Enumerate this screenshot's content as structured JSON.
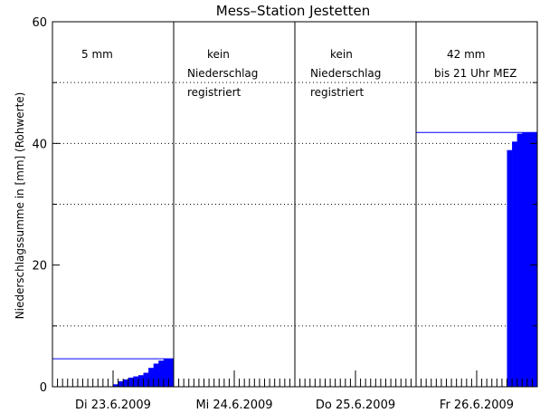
{
  "chart_data": {
    "type": "bar",
    "title": "Mess–Station Jestetten",
    "ylabel": "Niederschlagssumme in [mm] (Rohwerte)",
    "xlabel": "",
    "ylim": [
      0,
      60
    ],
    "yticks": [
      "0",
      "20",
      "40",
      "60"
    ],
    "y_minor_step": 10,
    "grid": "dotted horizontal at 10, 30, 40, 50",
    "days": [
      {
        "label": "Di 23.6.2009",
        "note": [
          "5 mm"
        ],
        "total": 4.6
      },
      {
        "label": "Mi 24.6.2009",
        "note": [
          "kein",
          "Niederschlag",
          "registriert"
        ],
        "total": 0
      },
      {
        "label": "Do 25.6.2009",
        "note": [
          "kein",
          "Niederschlag",
          "registriert"
        ],
        "total": 0
      },
      {
        "label": "Fr 26.6.2009",
        "note": [
          "42 mm",
          "bis 21 Uhr MEZ"
        ],
        "total": 41.8
      }
    ],
    "series": [
      {
        "color": "#0000ff",
        "x_hours": [
          12,
          13,
          14,
          15,
          16,
          17,
          18,
          19,
          20,
          21,
          22,
          23,
          24,
          25,
          26,
          27,
          28,
          29,
          30,
          31,
          32,
          33,
          34,
          35,
          36,
          37,
          38,
          39,
          40,
          41,
          42,
          43,
          44,
          45,
          46,
          47,
          48,
          49,
          50,
          51,
          52,
          53,
          54,
          55,
          56,
          57,
          58,
          59,
          60,
          61,
          62,
          63,
          64,
          65,
          66,
          67,
          68,
          69,
          70,
          71,
          72,
          73,
          74,
          75,
          76,
          77,
          78,
          79,
          80,
          81,
          82,
          83,
          84,
          85,
          86,
          87,
          88,
          89,
          90,
          91,
          92,
          93,
          94,
          95
        ],
        "values": [
          0.4,
          0.9,
          1.2,
          1.5,
          1.7,
          1.9,
          2.3,
          3.1,
          3.8,
          4.3,
          4.6,
          4.6,
          0,
          0,
          0,
          0,
          0,
          0,
          0,
          0,
          0,
          0,
          0,
          0,
          0,
          0,
          0,
          0,
          0,
          0,
          0,
          0,
          0,
          0,
          0,
          0,
          0,
          0,
          0,
          0,
          0,
          0,
          0,
          0,
          0,
          0,
          0,
          0,
          0,
          0,
          0,
          0,
          0,
          0,
          0,
          0,
          0,
          0,
          0,
          0,
          0,
          0,
          0,
          0,
          0,
          0,
          0,
          0,
          0,
          0,
          0,
          0,
          0,
          0,
          0,
          0,
          0,
          0,
          38.9,
          40.3,
          41.6,
          41.8,
          41.8,
          41.8
        ]
      }
    ]
  }
}
